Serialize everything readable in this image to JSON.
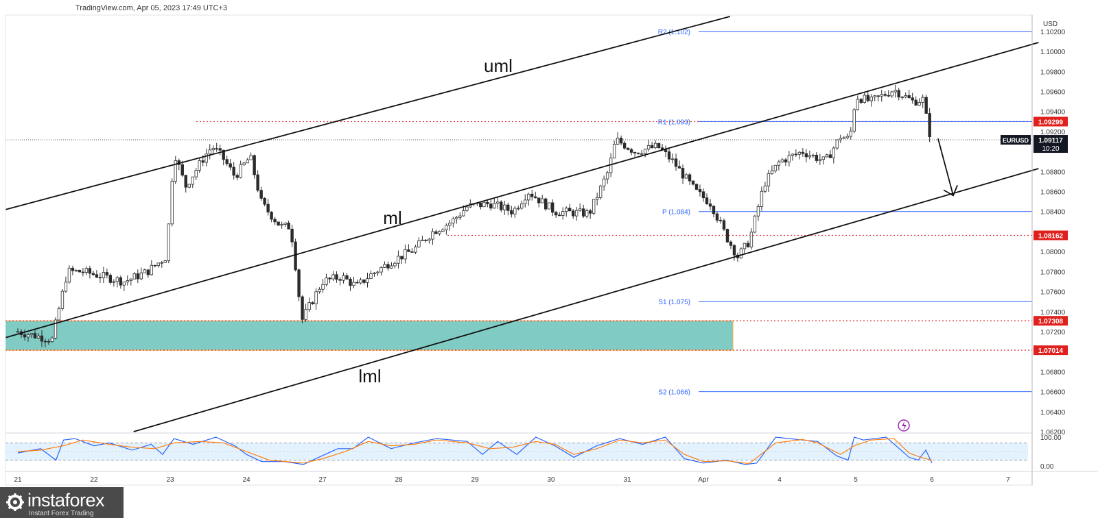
{
  "header": {
    "text": "TradingView.com, Apr 05, 2023 17:49 UTC+3"
  },
  "logo": {
    "name": "instaforex",
    "tagline": "Instant Forex Trading"
  },
  "colors": {
    "bull": "#26a69a",
    "bear": "#ef5350",
    "candle": "#2b2b2b",
    "pivot": "#2962ff",
    "level": "#e53935",
    "zone": "#80cbc4",
    "zone_border": "#f5b041",
    "osc_k": "#2962ff",
    "osc_d": "#ff7f0e",
    "osc_band": "#e3f2fd"
  },
  "chart_data": [
    {
      "type": "candlestick",
      "symbol": "EURUSD",
      "price_axis": {
        "unit": "USD",
        "ylim": [
          1.062,
          1.1035
        ],
        "ticks": [
          "1.10200",
          "1.10000",
          "1.09800",
          "1.09600",
          "1.09400",
          "1.09200",
          "1.08800",
          "1.08600",
          "1.08400",
          "1.08000",
          "1.07800",
          "1.07600",
          "1.07400",
          "1.07200",
          "1.06800",
          "1.06600",
          "1.06400",
          "1.06200"
        ]
      },
      "time_axis": {
        "labels": [
          "21",
          "22",
          "23",
          "24",
          "27",
          "28",
          "29",
          "30",
          "31",
          "Apr",
          "4",
          "5",
          "6",
          "7"
        ]
      },
      "current_price": {
        "label": "EURUSD",
        "value": "1.09117",
        "countdown": "10:20",
        "level": 1.09117
      },
      "pivot_levels": [
        {
          "label": "R2 (1.102)",
          "value": 1.102
        },
        {
          "label": "R1 (1.093)",
          "value": 1.093
        },
        {
          "label": "P (1.084)",
          "value": 1.084
        },
        {
          "label": "S1 (1.075)",
          "value": 1.075
        },
        {
          "label": "S2 (1.066)",
          "value": 1.066
        }
      ],
      "horizontal_levels": [
        {
          "value": "1.09299",
          "level": 1.09299
        },
        {
          "value": "1.08162",
          "level": 1.08162
        },
        {
          "value": "1.07308",
          "level": 1.07308
        },
        {
          "value": "1.07014",
          "level": 1.07014
        }
      ],
      "demand_zone": {
        "top": 1.07308,
        "bottom": 1.07014
      },
      "pitchfork_labels": {
        "upper": "uml",
        "median": "ml",
        "lower": "lml"
      },
      "pitchfork_lines": [
        {
          "name": "uml",
          "from": [
            0.0,
            1.0842
          ],
          "to": [
            9.35,
            1.1035
          ]
        },
        {
          "name": "ml",
          "from": [
            0.0,
            1.0714
          ],
          "to": [
            13.4,
            1.1009
          ]
        },
        {
          "name": "lml",
          "from": [
            1.52,
            1.062
          ],
          "to": [
            13.4,
            1.0883
          ]
        }
      ],
      "projection_arrow": {
        "from": [
          12.08,
          1.0913
        ],
        "to": [
          12.28,
          1.0856
        ],
        "direction": "down"
      },
      "close_path": [
        [
          0.0,
          1.072
        ],
        [
          0.45,
          1.0712
        ],
        [
          0.65,
          1.078
        ],
        [
          0.85,
          1.078
        ],
        [
          1.4,
          1.077
        ],
        [
          1.7,
          1.078
        ],
        [
          1.95,
          1.0795
        ],
        [
          2.05,
          1.09
        ],
        [
          2.2,
          1.0865
        ],
        [
          2.45,
          1.0895
        ],
        [
          2.55,
          1.0905
        ],
        [
          2.68,
          1.0895
        ],
        [
          2.85,
          1.0875
        ],
        [
          3.05,
          1.0895
        ],
        [
          3.2,
          1.0848
        ],
        [
          3.45,
          1.0825
        ],
        [
          3.58,
          1.0825
        ],
        [
          3.68,
          1.0765
        ],
        [
          3.72,
          1.073
        ],
        [
          4.0,
          1.077
        ],
        [
          4.25,
          1.0775
        ],
        [
          4.45,
          1.0765
        ],
        [
          4.6,
          1.0775
        ],
        [
          4.9,
          1.079
        ],
        [
          5.2,
          1.0802
        ],
        [
          5.45,
          1.082
        ],
        [
          5.7,
          1.083
        ],
        [
          5.9,
          1.0845
        ],
        [
          6.2,
          1.0848
        ],
        [
          6.5,
          1.084
        ],
        [
          6.7,
          1.086
        ],
        [
          7.05,
          1.084
        ],
        [
          7.5,
          1.0838
        ],
        [
          7.75,
          1.088
        ],
        [
          7.85,
          1.0912
        ],
        [
          8.1,
          1.09
        ],
        [
          8.4,
          1.0905
        ],
        [
          8.6,
          1.089
        ],
        [
          8.9,
          1.086
        ],
        [
          9.1,
          1.0848
        ],
        [
          9.3,
          1.0815
        ],
        [
          9.45,
          1.0795
        ],
        [
          9.6,
          1.081
        ],
        [
          9.8,
          1.0868
        ],
        [
          10.0,
          1.089
        ],
        [
          10.3,
          1.09
        ],
        [
          10.6,
          1.089
        ],
        [
          10.8,
          1.0915
        ],
        [
          10.92,
          1.0912
        ],
        [
          11.0,
          1.0955
        ],
        [
          11.2,
          1.095
        ],
        [
          11.5,
          1.0962
        ],
        [
          11.75,
          1.095
        ],
        [
          11.88,
          1.0952
        ],
        [
          11.95,
          1.0925
        ],
        [
          11.99,
          1.09117
        ]
      ]
    },
    {
      "type": "line",
      "panel": "oscillator",
      "ylim": [
        0,
        100
      ],
      "ticks": [
        "100.00",
        "0.00"
      ],
      "bands": [
        80,
        20
      ],
      "series": [
        {
          "role": "k",
          "values": [
            [
              0.0,
              45
            ],
            [
              0.3,
              60
            ],
            [
              0.5,
              20
            ],
            [
              0.6,
              90
            ],
            [
              0.75,
              95
            ],
            [
              1.0,
              70
            ],
            [
              1.2,
              80
            ],
            [
              1.5,
              55
            ],
            [
              1.75,
              75
            ],
            [
              1.9,
              40
            ],
            [
              2.05,
              95
            ],
            [
              2.3,
              75
            ],
            [
              2.6,
              100
            ],
            [
              2.85,
              70
            ],
            [
              3.0,
              40
            ],
            [
              3.2,
              15
            ],
            [
              3.5,
              15
            ],
            [
              3.75,
              5
            ],
            [
              3.95,
              30
            ],
            [
              4.2,
              60
            ],
            [
              4.4,
              60
            ],
            [
              4.6,
              100
            ],
            [
              4.9,
              60
            ],
            [
              5.2,
              80
            ],
            [
              5.5,
              95
            ],
            [
              5.9,
              85
            ],
            [
              6.1,
              40
            ],
            [
              6.3,
              85
            ],
            [
              6.55,
              40
            ],
            [
              6.8,
              100
            ],
            [
              7.05,
              70
            ],
            [
              7.3,
              30
            ],
            [
              7.6,
              70
            ],
            [
              7.9,
              95
            ],
            [
              8.2,
              75
            ],
            [
              8.5,
              100
            ],
            [
              8.75,
              25
            ],
            [
              9.0,
              10
            ],
            [
              9.3,
              20
            ],
            [
              9.55,
              5
            ],
            [
              9.7,
              10
            ],
            [
              9.95,
              100
            ],
            [
              10.3,
              90
            ],
            [
              10.5,
              85
            ],
            [
              10.75,
              35
            ],
            [
              10.9,
              20
            ],
            [
              10.98,
              100
            ],
            [
              11.1,
              90
            ],
            [
              11.4,
              100
            ],
            [
              11.7,
              30
            ],
            [
              11.82,
              20
            ],
            [
              11.92,
              55
            ],
            [
              12.0,
              10
            ]
          ]
        },
        {
          "role": "d",
          "values": [
            [
              0.0,
              50
            ],
            [
              0.3,
              55
            ],
            [
              0.6,
              70
            ],
            [
              0.85,
              90
            ],
            [
              1.2,
              75
            ],
            [
              1.5,
              65
            ],
            [
              1.8,
              60
            ],
            [
              2.05,
              80
            ],
            [
              2.4,
              85
            ],
            [
              2.7,
              80
            ],
            [
              3.0,
              50
            ],
            [
              3.3,
              20
            ],
            [
              3.75,
              10
            ],
            [
              4.0,
              25
            ],
            [
              4.3,
              50
            ],
            [
              4.6,
              85
            ],
            [
              4.9,
              70
            ],
            [
              5.2,
              75
            ],
            [
              5.5,
              90
            ],
            [
              5.9,
              80
            ],
            [
              6.2,
              60
            ],
            [
              6.5,
              65
            ],
            [
              6.8,
              85
            ],
            [
              7.05,
              75
            ],
            [
              7.3,
              40
            ],
            [
              7.6,
              60
            ],
            [
              7.9,
              90
            ],
            [
              8.2,
              80
            ],
            [
              8.5,
              90
            ],
            [
              8.75,
              40
            ],
            [
              9.0,
              15
            ],
            [
              9.3,
              18
            ],
            [
              9.6,
              8
            ],
            [
              9.95,
              80
            ],
            [
              10.3,
              92
            ],
            [
              10.5,
              80
            ],
            [
              10.8,
              40
            ],
            [
              10.98,
              70
            ],
            [
              11.2,
              90
            ],
            [
              11.5,
              95
            ],
            [
              11.7,
              45
            ],
            [
              11.85,
              30
            ],
            [
              12.0,
              20
            ]
          ]
        }
      ]
    }
  ]
}
